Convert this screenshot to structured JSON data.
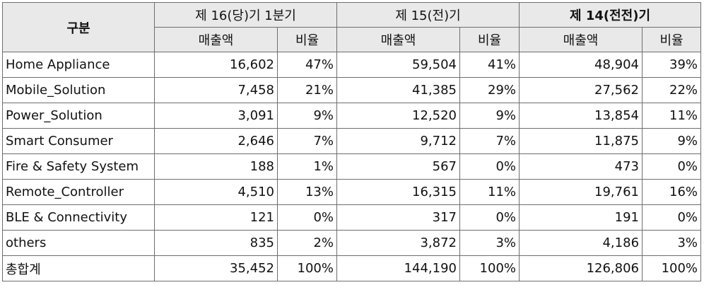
{
  "header": {
    "category": "구분",
    "periods": [
      {
        "label": "제 16(당)기 1분기",
        "bold": false
      },
      {
        "label": "제 15(전)기",
        "bold": false
      },
      {
        "label": "제 14(전전)기",
        "bold": true
      }
    ],
    "sales": "매출액",
    "ratio": "비율"
  },
  "rows": [
    {
      "name": "Home Appliance",
      "v": [
        "16,602",
        "47%",
        "59,504",
        "41%",
        "48,904",
        "39%"
      ]
    },
    {
      "name": "Mobile_Solution",
      "v": [
        "7,458",
        "21%",
        "41,385",
        "29%",
        "27,562",
        "22%"
      ]
    },
    {
      "name": "Power_Solution",
      "v": [
        "3,091",
        "9%",
        "12,520",
        "9%",
        "13,854",
        "11%"
      ]
    },
    {
      "name": "Smart Consumer",
      "v": [
        "2,646",
        "7%",
        "9,712",
        "7%",
        "11,875",
        "9%"
      ]
    },
    {
      "name": "Fire & Safety System",
      "v": [
        "188",
        "1%",
        "567",
        "0%",
        "473",
        "0%"
      ]
    },
    {
      "name": "Remote_Controller",
      "v": [
        "4,510",
        "13%",
        "16,315",
        "11%",
        "19,761",
        "16%"
      ]
    },
    {
      "name": "BLE & Connectivity",
      "v": [
        "121",
        "0%",
        "317",
        "0%",
        "191",
        "0%"
      ]
    },
    {
      "name": "others",
      "v": [
        "835",
        "2%",
        "3,872",
        "3%",
        "4,186",
        "3%"
      ]
    },
    {
      "name": "총합계",
      "v": [
        "35,452",
        "100%",
        "144,190",
        "100%",
        "126,806",
        "100%"
      ]
    }
  ]
}
